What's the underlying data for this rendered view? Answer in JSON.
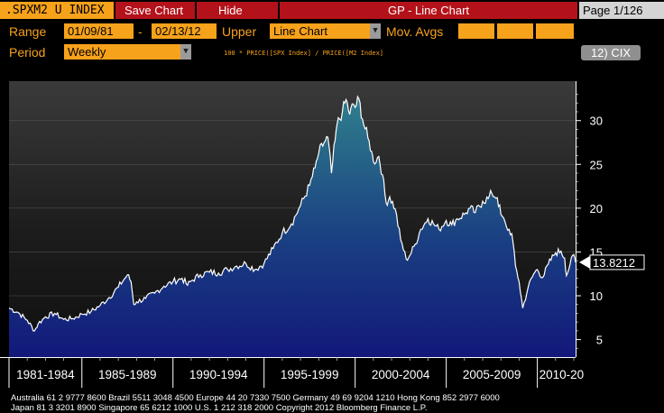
{
  "toolbar": {
    "ticker": ".SPXM2 U INDEX",
    "save_chart": "Save Chart",
    "hide": "Hide",
    "title": "GP - Line Chart",
    "page": "Page 1/126"
  },
  "controls": {
    "range_label": "Range",
    "range_start": "01/09/81",
    "range_dash": "-",
    "range_end": "02/13/12",
    "upper_label": "Upper",
    "upper_value": "Line Chart",
    "mov_avgs_label": "Mov. Avgs",
    "period_label": "Period",
    "period_value": "Weekly",
    "formula": "100 *    PRICE([SPX Index]  /    PRICE([M2 Index]",
    "cix_button": "12) CIX"
  },
  "footer": {
    "line1": "Australia 61 2 9777 8600 Brazil 5511 3048 4500 Europe 44 20 7330 7500 Germany 49 69 9204 1210 Hong Kong 852 2977 6000",
    "line2": "Japan 81 3 3201 8900           Singapore 65 6212 1000           U.S. 1 212 318 2000          Copyright 2012 Bloomberg Finance L.P."
  },
  "colors": {
    "bloomberg_orange": "#f7a21b",
    "button_red": "#b4121a",
    "line": "#ffffff",
    "fill_top": "#2f7f8c",
    "fill_bottom": "#12187a"
  },
  "chart_data": {
    "type": "area",
    "title": "",
    "xlabel": "",
    "ylabel": "",
    "x_tick_labels": [
      "1981-1984",
      "1985-1989",
      "1990-1994",
      "1995-1999",
      "2000-2004",
      "2005-2009",
      "2010-20"
    ],
    "y_ticks": [
      5,
      10,
      15,
      20,
      25,
      30
    ],
    "ylim": [
      3,
      34.5
    ],
    "xlim": [
      1981.0,
      2012.1
    ],
    "last_value_label": "13.8212",
    "grid": true,
    "series": [
      {
        "x": [
          1981.0,
          1981.5,
          1982.0,
          1982.4,
          1982.6,
          1983.0,
          1983.5,
          1984.0,
          1984.5,
          1985.0,
          1985.5,
          1986.0,
          1986.5,
          1987.0,
          1987.5,
          1987.7,
          1987.85,
          1988.0,
          1988.5,
          1989.0,
          1989.5,
          1990.0,
          1990.5,
          1990.8,
          1991.0,
          1991.5,
          1992.0,
          1992.5,
          1993.0,
          1993.5,
          1994.0,
          1994.5,
          1995.0,
          1995.5,
          1996.0,
          1996.5,
          1997.0,
          1997.5,
          1997.8,
          1998.0,
          1998.3,
          1998.5,
          1998.7,
          1998.9,
          1999.0,
          1999.3,
          1999.5,
          1999.7,
          1999.9,
          2000.0,
          2000.2,
          2000.4,
          2000.7,
          2000.9,
          2001.0,
          2001.3,
          2001.5,
          2001.7,
          2001.9,
          2002.2,
          2002.5,
          2002.8,
          2003.0,
          2003.3,
          2003.6,
          2004.0,
          2004.3,
          2004.6,
          2005.0,
          2005.3,
          2005.6,
          2006.0,
          2006.3,
          2006.6,
          2007.0,
          2007.3,
          2007.5,
          2007.8,
          2008.0,
          2008.3,
          2008.6,
          2008.8,
          2009.0,
          2009.2,
          2009.5,
          2009.8,
          2010.0,
          2010.3,
          2010.6,
          2010.9,
          2011.0,
          2011.3,
          2011.5,
          2011.6,
          2011.8,
          2012.0,
          2012.1
        ],
        "y": [
          8.6,
          8.1,
          7.2,
          6.0,
          6.8,
          7.6,
          8.0,
          7.3,
          7.4,
          7.9,
          8.2,
          8.9,
          9.8,
          11.0,
          12.4,
          11.6,
          9.0,
          9.3,
          9.7,
          10.3,
          11.1,
          11.6,
          12.0,
          11.2,
          11.7,
          12.4,
          12.7,
          12.6,
          13.0,
          13.4,
          13.7,
          13.0,
          13.7,
          15.4,
          17.2,
          18.2,
          20.3,
          22.6,
          24.6,
          26.3,
          27.5,
          28.1,
          24.0,
          27.8,
          29.5,
          31.0,
          32.4,
          30.7,
          31.9,
          31.5,
          32.5,
          30.2,
          28.0,
          26.5,
          25.3,
          25.9,
          23.8,
          20.6,
          21.3,
          19.9,
          16.4,
          14.2,
          14.6,
          15.9,
          17.6,
          18.8,
          18.2,
          17.6,
          18.6,
          18.1,
          18.8,
          19.3,
          20.0,
          19.5,
          20.8,
          21.1,
          21.7,
          21.2,
          19.3,
          17.9,
          17.1,
          13.4,
          11.6,
          8.6,
          11.0,
          12.5,
          13.0,
          12.1,
          13.6,
          14.6,
          14.9,
          15.1,
          14.3,
          12.3,
          13.6,
          14.7,
          13.82
        ]
      }
    ]
  }
}
